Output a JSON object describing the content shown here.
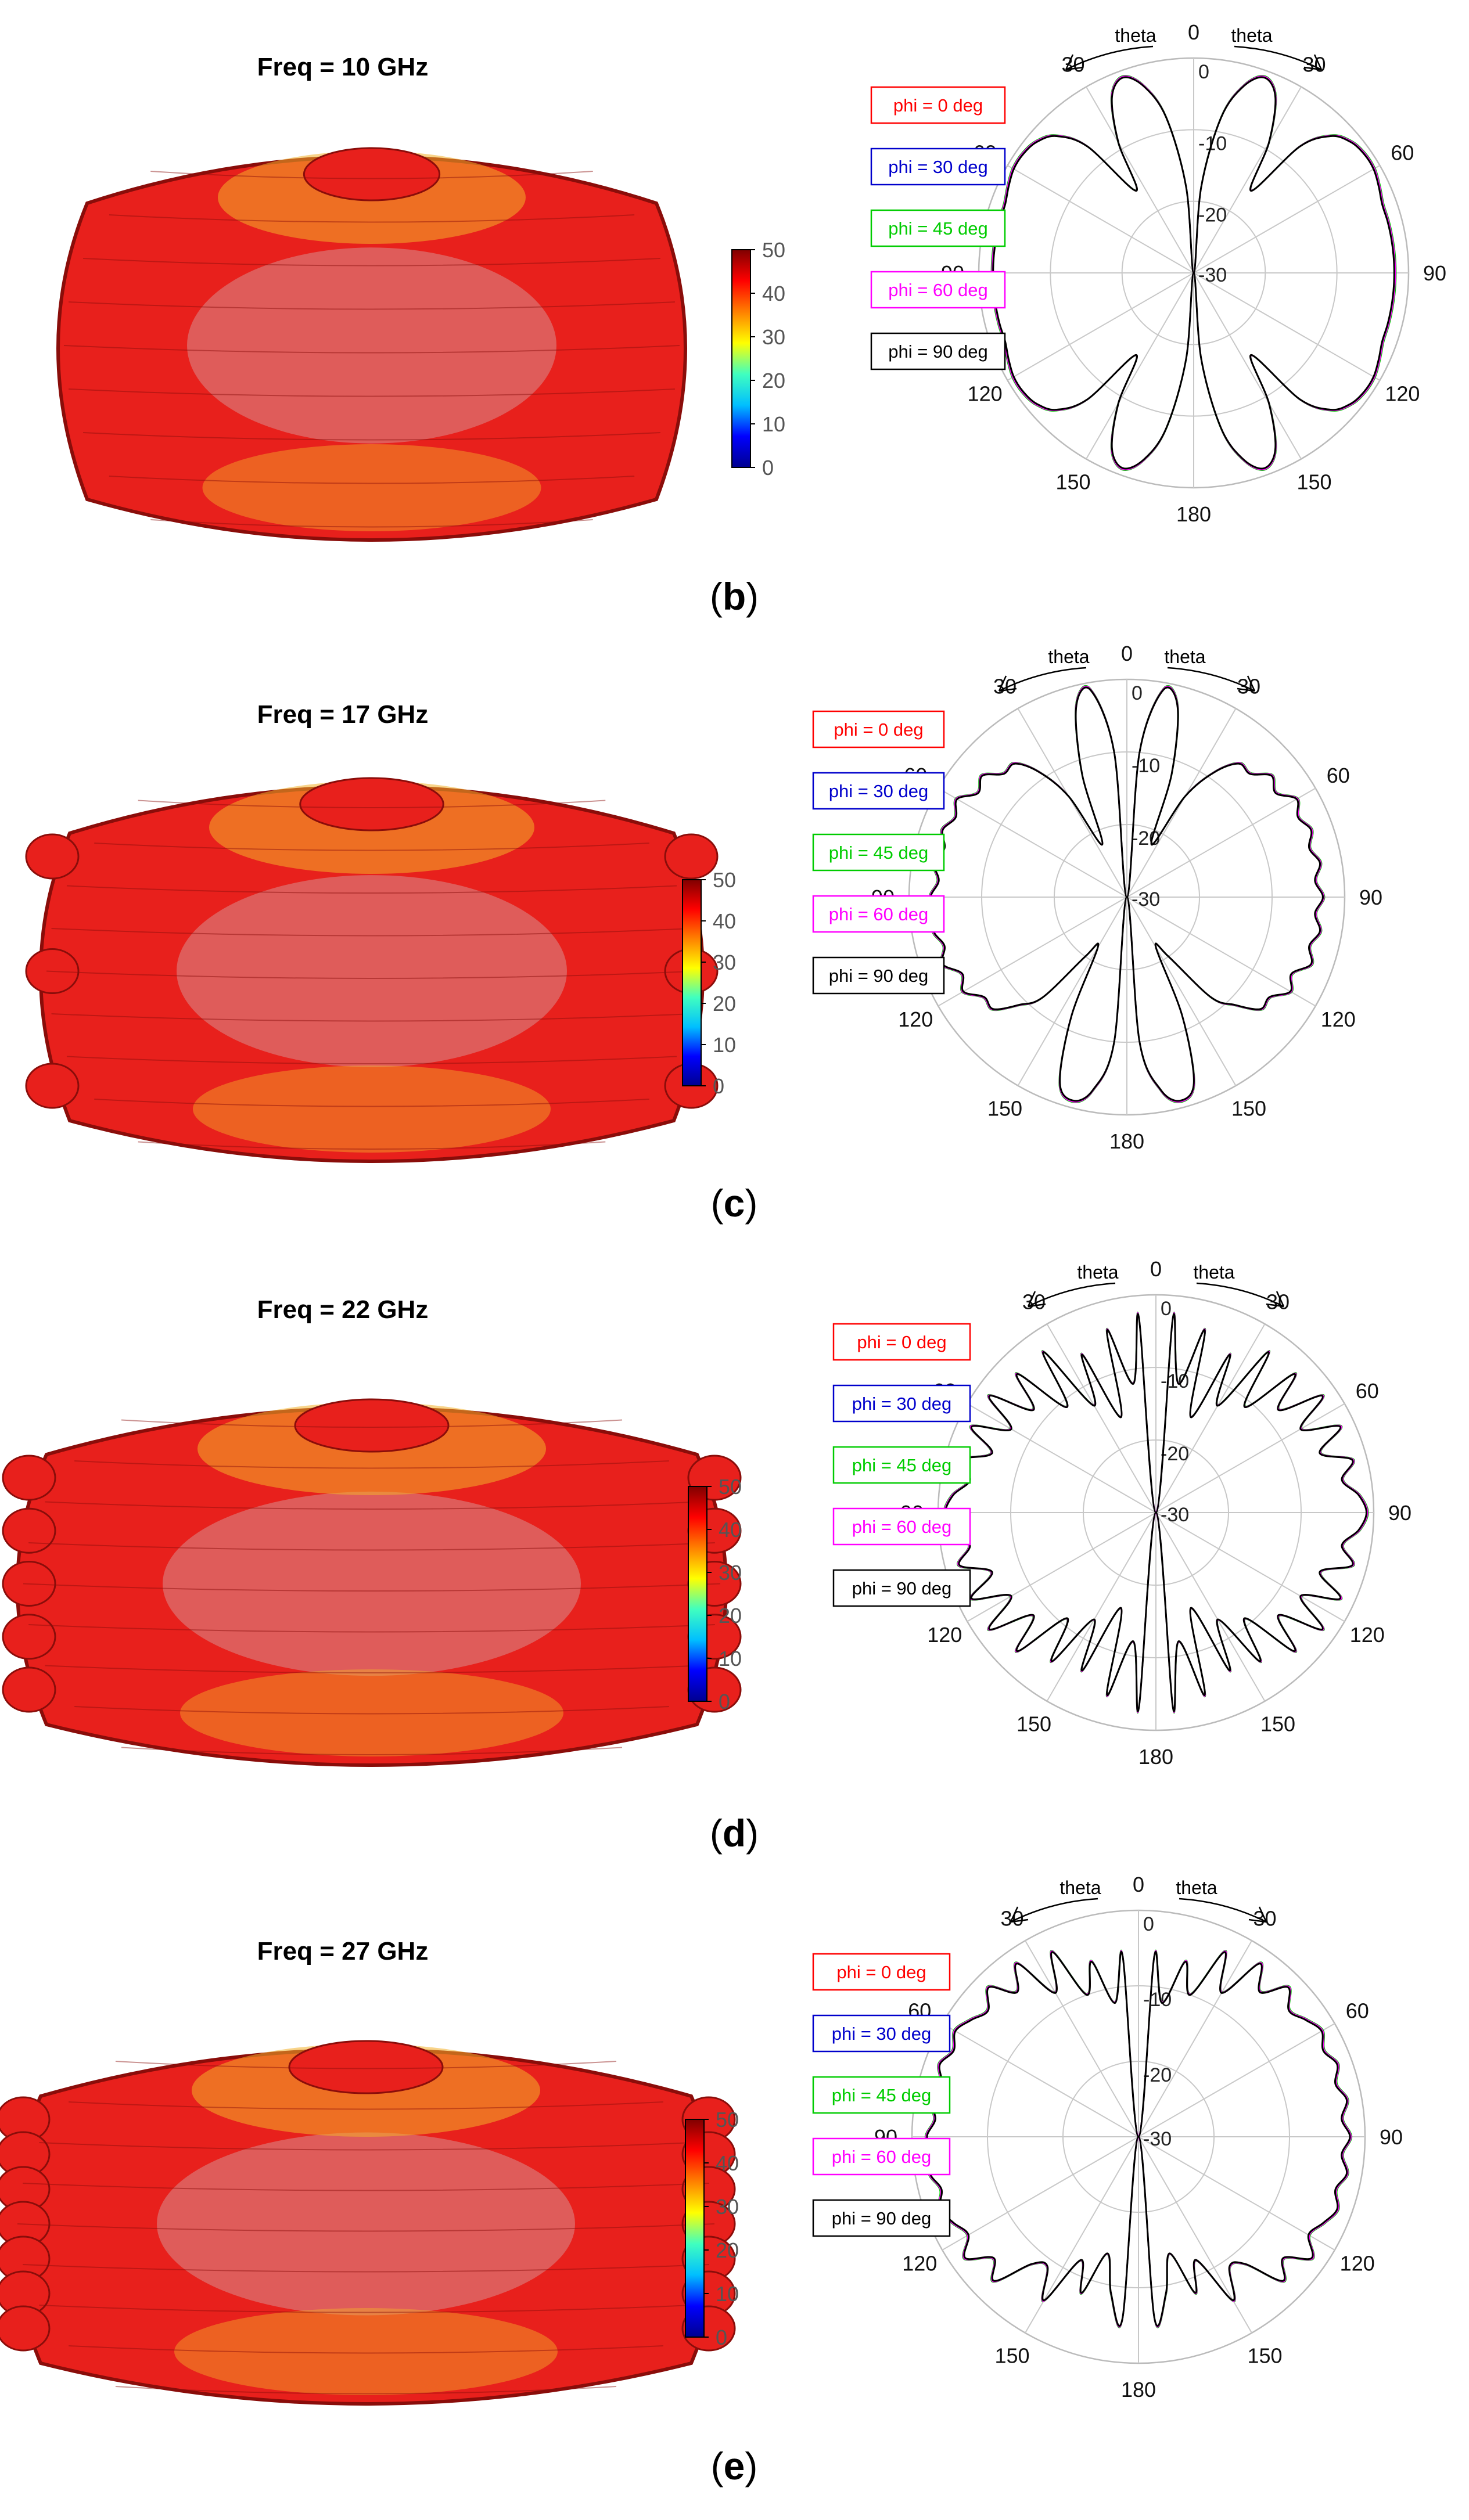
{
  "legend_labels": [
    "phi = 0  deg",
    "phi = 30 deg",
    "phi = 45 deg",
    "phi = 60 deg",
    "phi = 90 deg"
  ],
  "legend_colors": [
    "#ff0000",
    "#0000cc",
    "#00cc00",
    "#ff00ff",
    "#000000"
  ],
  "theta_label": "theta",
  "colormap": [
    "#00008f",
    "#0000ff",
    "#00bfff",
    "#40ffbf",
    "#ffff00",
    "#ff8000",
    "#ff0000",
    "#800000"
  ],
  "surface_colors": {
    "main": "#e8201c",
    "dark": "#8a0d0a",
    "warm": "#f3b12a",
    "light": "#cfcfcf"
  },
  "chart_data": [
    {
      "type": "surface",
      "title": "Freq = 10 GHz",
      "colorbar_ticks": [
        0,
        10,
        20,
        30,
        40,
        50
      ],
      "colorbar_range": [
        0,
        50
      ]
    },
    {
      "type": "polar",
      "panel_label": "b",
      "angle_ticks": [
        0,
        30,
        60,
        90,
        120,
        150,
        180,
        150,
        120,
        90,
        60,
        30
      ],
      "radial_ticks": [
        0,
        -10,
        -20,
        -30
      ],
      "radial_range": [
        -30,
        0
      ],
      "series": [
        {
          "name": "phi = 0  deg"
        },
        {
          "name": "phi = 30 deg"
        },
        {
          "name": "phi = 45 deg"
        },
        {
          "name": "phi = 60 deg"
        },
        {
          "name": "phi = 90 deg"
        }
      ],
      "pattern": {
        "theta_deg": [
          0,
          5,
          10,
          15,
          20,
          25,
          30,
          35,
          40,
          45,
          50,
          55,
          60,
          65,
          70,
          75,
          80,
          85,
          90,
          95,
          100,
          105,
          110,
          115,
          120,
          125,
          130,
          135,
          140,
          145,
          150,
          155,
          160,
          165,
          170,
          175,
          180
        ],
        "gain_db": [
          -30,
          -18,
          -8,
          -3,
          -1,
          -3,
          -9,
          -16,
          -7,
          -3,
          -1.5,
          -1,
          -1,
          -1.5,
          -2,
          -2,
          -2,
          -2,
          -2,
          -2,
          -2,
          -2,
          -2,
          -1.5,
          -1,
          -1,
          -1.5,
          -3,
          -7,
          -16,
          -9,
          -3,
          -1,
          -3,
          -8,
          -18,
          -30
        ]
      }
    },
    {
      "type": "surface",
      "title": "Freq = 17 GHz",
      "colorbar_ticks": [
        0,
        10,
        20,
        30,
        40,
        50
      ],
      "colorbar_range": [
        0,
        50
      ]
    },
    {
      "type": "polar",
      "panel_label": "c",
      "angle_ticks": [
        0,
        30,
        60,
        90,
        120,
        150,
        180,
        150,
        120,
        90,
        60,
        30
      ],
      "radial_ticks": [
        0,
        -10,
        -20,
        -30
      ],
      "radial_range": [
        -30,
        0
      ],
      "series": [
        {
          "name": "phi = 0  deg"
        },
        {
          "name": "phi = 30 deg"
        },
        {
          "name": "phi = 45 deg"
        },
        {
          "name": "phi = 60 deg"
        },
        {
          "name": "phi = 90 deg"
        }
      ],
      "pattern": {
        "theta_deg": [
          0,
          5,
          10,
          15,
          20,
          25,
          30,
          35,
          40,
          45,
          50,
          55,
          60,
          65,
          70,
          75,
          80,
          85,
          90,
          95,
          100,
          105,
          110,
          115,
          120,
          125,
          130,
          135,
          140,
          145,
          150,
          155,
          160,
          165,
          170,
          175,
          180
        ],
        "gain_db": [
          -30,
          -10,
          -1,
          -3,
          -12,
          -22,
          -14,
          -9,
          -6,
          -6,
          -4,
          -5,
          -3,
          -4,
          -3,
          -4,
          -3,
          -4,
          -3,
          -4,
          -3,
          -4,
          -3,
          -5,
          -4,
          -6,
          -6,
          -9,
          -12,
          -20,
          -22,
          -12,
          -3,
          -1,
          -3,
          -10,
          -30
        ]
      }
    },
    {
      "type": "surface",
      "title": "Freq = 22 GHz",
      "colorbar_ticks": [
        0,
        10,
        20,
        30,
        40,
        50
      ],
      "colorbar_range": [
        0,
        50
      ]
    },
    {
      "type": "polar",
      "panel_label": "d",
      "angle_ticks": [
        0,
        30,
        60,
        90,
        120,
        150,
        180,
        150,
        120,
        90,
        60,
        30
      ],
      "radial_ticks": [
        0,
        -10,
        -20,
        -30
      ],
      "radial_range": [
        -30,
        0
      ],
      "series": [
        {
          "name": "phi = 0  deg"
        },
        {
          "name": "phi = 30 deg"
        },
        {
          "name": "phi = 45 deg"
        },
        {
          "name": "phi = 60 deg"
        },
        {
          "name": "phi = 90 deg"
        }
      ],
      "pattern": {
        "theta_deg": [
          0,
          5,
          10,
          15,
          20,
          25,
          30,
          35,
          40,
          45,
          50,
          55,
          60,
          65,
          70,
          75,
          80,
          85,
          90,
          95,
          100,
          105,
          110,
          115,
          120,
          125,
          130,
          135,
          140,
          145,
          150,
          155,
          160,
          165,
          170,
          175,
          180
        ],
        "gain_db": [
          -30,
          -3,
          -12,
          -4,
          -16,
          -6,
          -13,
          -3,
          -11,
          -3,
          -8,
          -2,
          -7,
          -2,
          -6,
          -2,
          -4,
          -2,
          -1,
          -2,
          -4,
          -2,
          -6,
          -2,
          -7,
          -2,
          -8,
          -3,
          -11,
          -5,
          -13,
          -6,
          -16,
          -4,
          -12,
          -3,
          -30
        ]
      }
    },
    {
      "type": "surface",
      "title": "Freq = 27 GHz",
      "colorbar_ticks": [
        0,
        10,
        20,
        30,
        40,
        50
      ],
      "colorbar_range": [
        0,
        50
      ]
    },
    {
      "type": "polar",
      "panel_label": "e",
      "angle_ticks": [
        0,
        30,
        60,
        90,
        120,
        150,
        180,
        150,
        120,
        90,
        60,
        30
      ],
      "radial_ticks": [
        0,
        -10,
        -20,
        -30
      ],
      "radial_range": [
        -30,
        0
      ],
      "series": [
        {
          "name": "phi = 0  deg"
        },
        {
          "name": "phi = 30 deg"
        },
        {
          "name": "phi = 45 deg"
        },
        {
          "name": "phi = 60 deg"
        },
        {
          "name": "phi = 90 deg"
        }
      ],
      "pattern": {
        "theta_deg": [
          0,
          5,
          10,
          15,
          20,
          25,
          30,
          35,
          40,
          45,
          50,
          55,
          60,
          65,
          70,
          75,
          80,
          85,
          90,
          95,
          100,
          105,
          110,
          115,
          120,
          125,
          130,
          135,
          140,
          145,
          150,
          155,
          160,
          165,
          170,
          175,
          180
        ],
        "gain_db": [
          -30,
          -6,
          -12,
          -6,
          -10,
          -3,
          -8,
          -2,
          -5,
          -2,
          -4,
          -3,
          -2,
          -3,
          -2,
          -3,
          -2,
          -3,
          -2,
          -3,
          -2,
          -3,
          -2,
          -3,
          -4,
          -2,
          -5,
          -3,
          -8,
          -9,
          -5,
          -12,
          -8,
          -14,
          -9,
          -6,
          -30
        ]
      }
    }
  ]
}
